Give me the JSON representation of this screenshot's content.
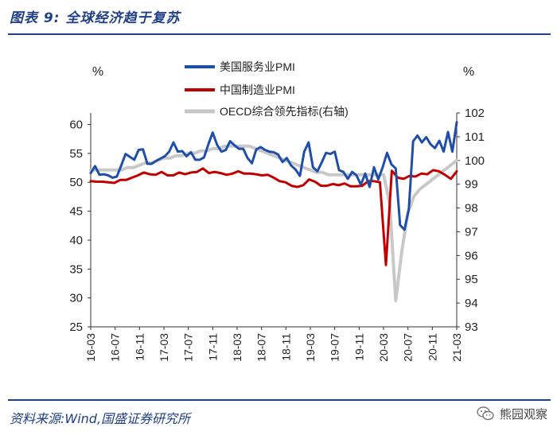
{
  "header": {
    "title": "图表 9:  全球经济趋于复苏"
  },
  "footer": {
    "source": "资料来源:Wind,国盛证券研究所",
    "watermark": "熊园观察",
    "watermark_icon": "wechat-icon"
  },
  "chart_data": {
    "type": "line",
    "title": "图表 9:  全球经济趋于复苏",
    "left_unit": "%",
    "right_unit": "%",
    "ylim_left": [
      25,
      62
    ],
    "ylim_right": [
      93,
      102
    ],
    "yticks_left": [
      "60",
      "55",
      "50",
      "45",
      "40",
      "35",
      "30",
      "25"
    ],
    "yticks_right": [
      "102",
      "101",
      "100",
      "99",
      "98",
      "97",
      "96",
      "95",
      "94",
      "93"
    ],
    "xticks": [
      "16-03",
      "16-07",
      "16-11",
      "17-03",
      "17-07",
      "17-11",
      "18-03",
      "18-07",
      "18-11",
      "19-03",
      "19-07",
      "19-11",
      "20-03",
      "20-07",
      "20-11",
      "21-03"
    ],
    "grid": false,
    "legend_position": "top-center",
    "series": [
      {
        "name": "美国服务业PMI",
        "axis": "left",
        "color": "#1f4ea8",
        "values": [
          51.6,
          52.8,
          51.3,
          51.4,
          51.2,
          50.8,
          51.0,
          52.9,
          54.9,
          54.4,
          53.9,
          55.6,
          55.7,
          53.2,
          53.2,
          53.7,
          54.1,
          54.5,
          55.3,
          56.9,
          55.3,
          55.4,
          54.5,
          55.2,
          53.9,
          53.9,
          54.3,
          56.6,
          58.6,
          56.5,
          55.3,
          55.6,
          57.1,
          56.4,
          55.8,
          55.8,
          54.2,
          53.3,
          55.7,
          56.1,
          55.6,
          55.3,
          55.2,
          54.8,
          53.5,
          54.2,
          52.9,
          52.2,
          51.1,
          55.3,
          56.9,
          52.6,
          51.9,
          53.4,
          55.1,
          54.9,
          55.3,
          52.1,
          51.8,
          50.6,
          51.8,
          51.2,
          49.6,
          51.5,
          49.2,
          52.6,
          50.5,
          52.6,
          55.1,
          53.1,
          52.4,
          42.6,
          41.8,
          45.4,
          57.1,
          58.1,
          56.9,
          57.8,
          56.6,
          55.9,
          57.2,
          55.3,
          58.7,
          55.3,
          60.4
        ]
      },
      {
        "name": "中国制造业PMI",
        "axis": "left",
        "color": "#c00000",
        "values": [
          50.2,
          50.1,
          50.1,
          50.0,
          49.9,
          50.4,
          50.4,
          50.8,
          51.2,
          51.7,
          51.4,
          51.3,
          51.8,
          51.2,
          51.2,
          51.7,
          51.4,
          51.7,
          51.8,
          52.4,
          51.6,
          51.8,
          51.6,
          51.3,
          51.5,
          51.9,
          51.5,
          51.5,
          51.4,
          51.2,
          51.3,
          50.8,
          50.2,
          50.0,
          49.4,
          49.2,
          49.5,
          50.5,
          50.1,
          49.4,
          49.4,
          49.7,
          49.5,
          49.8,
          49.3,
          49.3,
          49.4,
          50.2,
          50.2,
          50.0,
          35.7,
          52.0,
          50.8,
          50.6,
          51.1,
          51.0,
          51.5,
          51.4,
          52.1,
          51.9,
          51.3,
          50.6,
          51.9
        ]
      },
      {
        "name": "OECD综合领先指标(右轴)",
        "axis": "right",
        "color": "#c8c8c8",
        "values": [
          99.6,
          99.6,
          99.6,
          99.6,
          99.6,
          99.6,
          99.7,
          99.7,
          99.8,
          99.9,
          99.9,
          100.0,
          100.1,
          100.1,
          100.2,
          100.2,
          100.3,
          100.3,
          100.4,
          100.4,
          100.5,
          100.5,
          100.6,
          100.6,
          100.6,
          100.6,
          100.6,
          100.5,
          100.4,
          100.3,
          100.2,
          100.1,
          100.0,
          99.9,
          99.8,
          99.7,
          99.6,
          99.5,
          99.5,
          99.4,
          99.4,
          99.4,
          99.4,
          99.4,
          99.4,
          99.4,
          99.4,
          99.4,
          99.4,
          98.2,
          94.1,
          96.2,
          97.8,
          98.5,
          98.8,
          99.0,
          99.2,
          99.4,
          99.6,
          99.8,
          100.0
        ]
      }
    ]
  }
}
